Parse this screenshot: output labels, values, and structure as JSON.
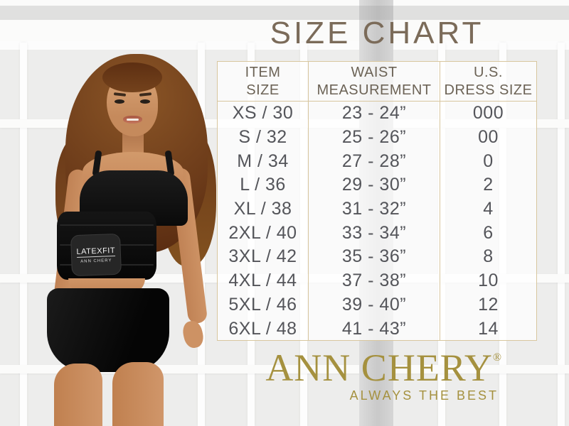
{
  "title": "SIZE CHART",
  "chart_data": {
    "type": "table",
    "columns": [
      {
        "line1": "ITEM",
        "line2": "SIZE"
      },
      {
        "line1": "WAIST",
        "line2": "MEASUREMENT"
      },
      {
        "line1": "U.S.",
        "line2": "DRESS SIZE"
      }
    ],
    "rows": [
      {
        "item_size": "XS / 30",
        "waist_measurement": "23 - 24”",
        "us_dress_size": "000"
      },
      {
        "item_size": "S / 32",
        "waist_measurement": "25 - 26”",
        "us_dress_size": "00"
      },
      {
        "item_size": "M / 34",
        "waist_measurement": "27 - 28”",
        "us_dress_size": "0"
      },
      {
        "item_size": "L / 36",
        "waist_measurement": "29 - 30”",
        "us_dress_size": "2"
      },
      {
        "item_size": "XL / 38",
        "waist_measurement": "31 - 32”",
        "us_dress_size": "4"
      },
      {
        "item_size": "2XL / 40",
        "waist_measurement": "33 - 34”",
        "us_dress_size": "6"
      },
      {
        "item_size": "3XL / 42",
        "waist_measurement": "35 - 36”",
        "us_dress_size": "8"
      },
      {
        "item_size": "4XL / 44",
        "waist_measurement": "37 - 38”",
        "us_dress_size": "10"
      },
      {
        "item_size": "5XL / 46",
        "waist_measurement": "39 - 40”",
        "us_dress_size": "12"
      },
      {
        "item_size": "6XL / 48",
        "waist_measurement": "41 - 43”",
        "us_dress_size": "14"
      }
    ]
  },
  "brand": {
    "name": "ANN CHERY",
    "registered_mark": "®",
    "tagline": "ALWAYS THE BEST"
  },
  "garment_label": {
    "main": "LATEXFIT",
    "sub": "ANN CHERY"
  },
  "colors": {
    "title_text": "#7b6b59",
    "table_text": "#54555a",
    "header_text": "#6c6356",
    "table_border": "#d8c69e",
    "brand_gold": "#a5913f"
  }
}
